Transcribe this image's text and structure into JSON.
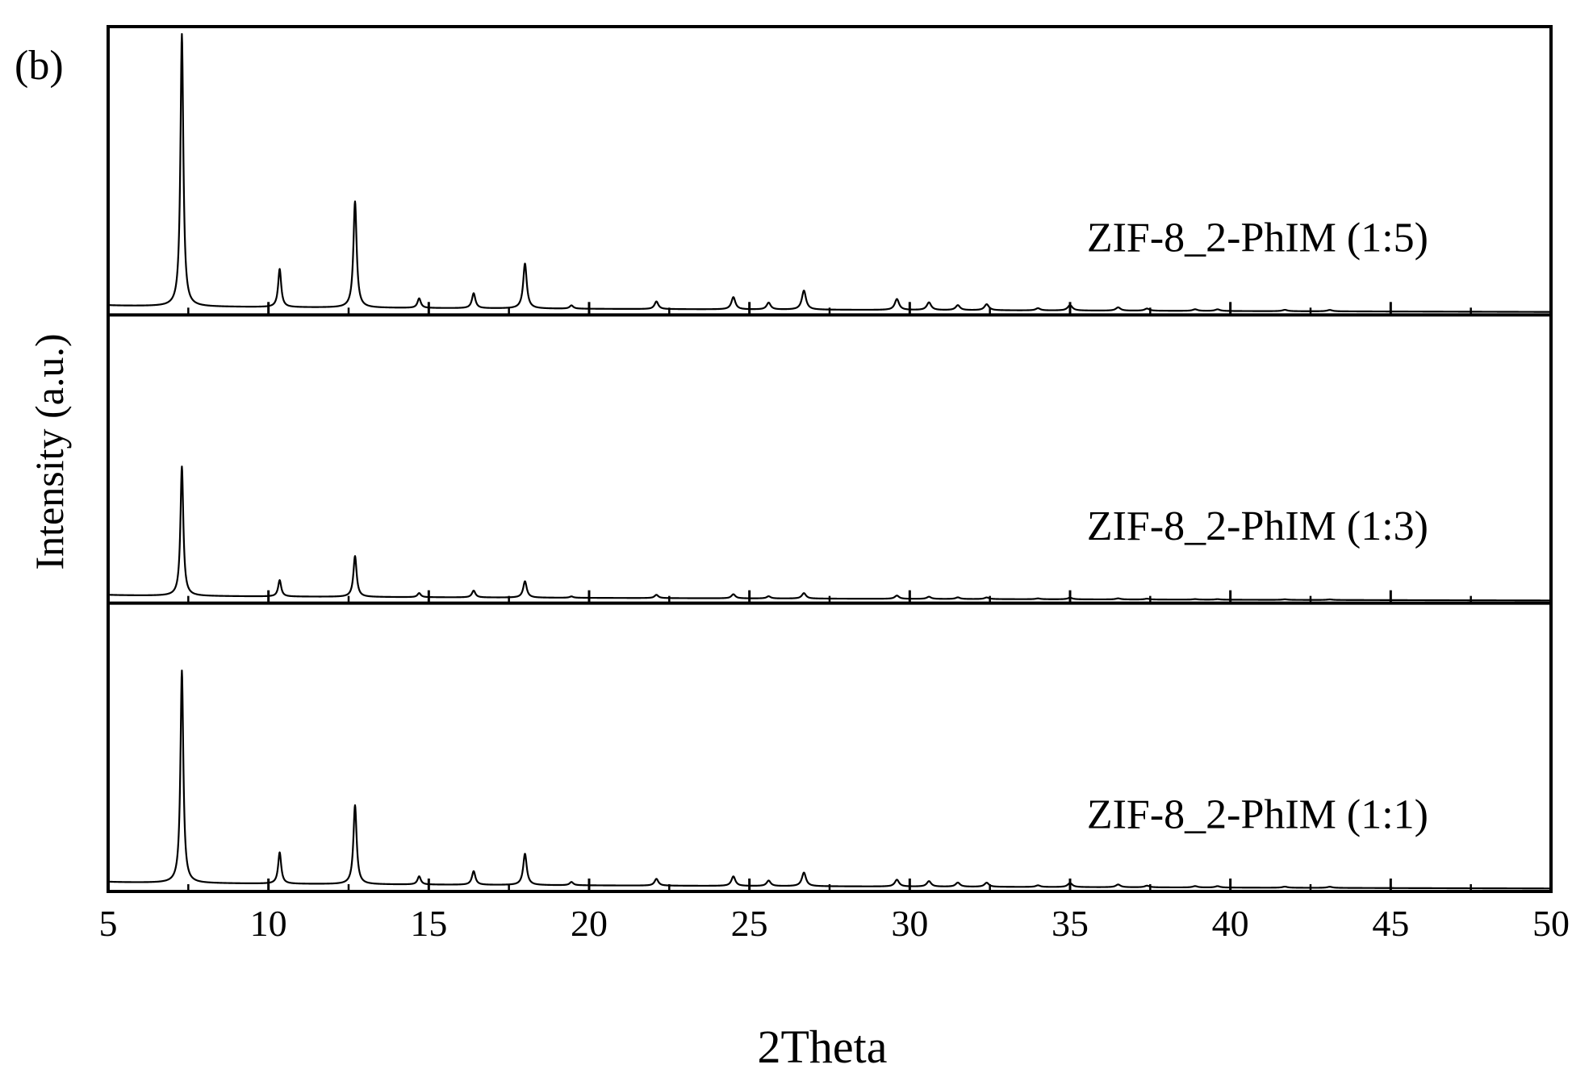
{
  "chart_data": {
    "type": "line",
    "panel_label": "(b)",
    "xlabel": "2Theta",
    "ylabel": "Intensity (a.u.)",
    "xlim": [
      5,
      50
    ],
    "x_ticks": [
      5,
      10,
      15,
      20,
      25,
      30,
      35,
      40,
      45,
      50
    ],
    "grid": false,
    "line_color": "#000000",
    "peaks_2theta": [
      7.3,
      10.35,
      12.7,
      14.7,
      16.4,
      18.0,
      19.45,
      22.1,
      24.5,
      25.6,
      26.7,
      29.6,
      30.6,
      31.5,
      32.4,
      34.0,
      35.0,
      36.5,
      37.4,
      38.9,
      39.6,
      41.7,
      43.1
    ],
    "series": [
      {
        "name": "ZIF-8_2-PhIM (1:5)",
        "baseline_start": 0.03,
        "baseline_end": 0.005,
        "intensities": [
          1.0,
          0.14,
          0.39,
          0.035,
          0.055,
          0.165,
          0.012,
          0.028,
          0.045,
          0.025,
          0.07,
          0.04,
          0.028,
          0.018,
          0.022,
          0.008,
          0.02,
          0.012,
          0.008,
          0.006,
          0.006,
          0.005,
          0.005
        ]
      },
      {
        "name": "ZIF-8_2-PhIM (1:3)",
        "baseline_start": 0.025,
        "baseline_end": 0.004,
        "intensities": [
          0.475,
          0.06,
          0.15,
          0.015,
          0.025,
          0.06,
          0.005,
          0.012,
          0.015,
          0.008,
          0.02,
          0.012,
          0.008,
          0.006,
          0.006,
          0.003,
          0.006,
          0.004,
          0.003,
          0.002,
          0.002,
          0.002,
          0.002
        ]
      },
      {
        "name": "ZIF-8_2-PhIM (1:1)",
        "baseline_start": 0.03,
        "baseline_end": 0.005,
        "intensities": [
          0.78,
          0.115,
          0.29,
          0.03,
          0.05,
          0.115,
          0.012,
          0.025,
          0.035,
          0.02,
          0.05,
          0.025,
          0.02,
          0.015,
          0.015,
          0.006,
          0.015,
          0.01,
          0.006,
          0.005,
          0.005,
          0.004,
          0.004
        ]
      }
    ]
  }
}
